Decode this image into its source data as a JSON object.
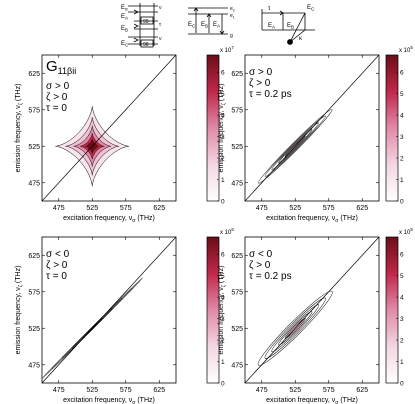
{
  "diagrams": {
    "ladder": {
      "energies": [
        "E",
        "E",
        "E",
        "E"
      ],
      "subscripts": [
        "α",
        "A",
        "B",
        "C"
      ],
      "side_labels": [
        "ν",
        "τ",
        "ν"
      ],
      "box_labels": [
        "99",
        "98"
      ]
    },
    "levels": {
      "energies": [
        "E",
        "E",
        "E"
      ],
      "subscripts": [
        "C",
        "B",
        "A"
      ],
      "side_labels": [
        "e",
        "e",
        "g"
      ],
      "side_subscripts": [
        "2",
        "1",
        ""
      ]
    },
    "kinetic": {
      "energies": [
        "E",
        "E",
        "E"
      ],
      "subscripts": [
        "A",
        "B",
        "C"
      ],
      "rate_labels": [
        "τ",
        "κ"
      ]
    }
  },
  "colors": {
    "contour": "#000000",
    "fill_dark": "#6b0d18",
    "fill_light": "#f4d8e4",
    "diagonal": "#000000"
  },
  "chart_data": [
    {
      "type": "heatmap",
      "panel_title": "G",
      "panel_title_suffix": "11βii",
      "params": [
        "σ > 0",
        "ζ > 0",
        "τ = 0"
      ],
      "xlabel": "excitation frequency, ν",
      "xlabel_sub": "σ",
      "xlabel_unit": "(THz)",
      "ylabel": "emission frequency, ν",
      "ylabel_sub": "ζ",
      "ylabel_unit": "(THz)",
      "xticks": [
        475,
        525,
        575,
        625
      ],
      "yticks": [
        475,
        525,
        575,
        625
      ],
      "xlim": [
        450,
        650
      ],
      "ylim": [
        450,
        650
      ],
      "colorbar_exponent": "x 10",
      "colorbar_power": "7",
      "colorbar_ticks": [
        0,
        1,
        2,
        3,
        4,
        5,
        6
      ],
      "colorbar_max": 6.8,
      "shape": "cross",
      "center": [
        525,
        525
      ],
      "extents": [
        55,
        40,
        28,
        18,
        10
      ]
    },
    {
      "type": "heatmap",
      "panel_title": "",
      "panel_title_suffix": "",
      "params": [
        "σ > 0",
        "ζ > 0",
        "τ = 0.2 ps"
      ],
      "xlabel": "excitation frequency, ν",
      "xlabel_sub": "σ",
      "xlabel_unit": "(THz)",
      "ylabel": "emission frequency, ν",
      "ylabel_sub": "ζ",
      "ylabel_unit": "(THz)",
      "xticks": [
        475,
        525,
        575,
        625
      ],
      "yticks": [
        475,
        525,
        575,
        625
      ],
      "xlim": [
        450,
        650
      ],
      "ylim": [
        450,
        650
      ],
      "colorbar_exponent": "x 10",
      "colorbar_power": "5",
      "colorbar_ticks": [
        0,
        1,
        2,
        3,
        4,
        5,
        6
      ],
      "colorbar_max": 6.8,
      "shape": "diagonal",
      "center": [
        525,
        525
      ],
      "extents": [
        55,
        45,
        35,
        25,
        15
      ],
      "widths": [
        5,
        4,
        3,
        2,
        1.2
      ]
    },
    {
      "type": "heatmap",
      "panel_title": "",
      "panel_title_suffix": "",
      "params": [
        "σ < 0",
        "ζ > 0",
        "τ = 0"
      ],
      "xlabel": "excitation frequency, ν",
      "xlabel_sub": "σ",
      "xlabel_unit": "(THz)",
      "ylabel": "emission frequency, ν",
      "ylabel_sub": "ζ",
      "ylabel_unit": "(THz)",
      "xticks": [
        475,
        525,
        575,
        625
      ],
      "yticks": [
        475,
        525,
        575,
        625
      ],
      "xlim": [
        450,
        650
      ],
      "ylim": [
        450,
        650
      ],
      "colorbar_exponent": "x 10",
      "colorbar_power": "6",
      "colorbar_ticks": [
        0,
        1,
        2,
        3,
        4,
        5,
        6
      ],
      "colorbar_max": 6.8,
      "shape": "diagonal",
      "center": [
        525,
        525
      ],
      "extents": [
        75,
        60,
        45,
        30,
        15
      ],
      "widths": [
        1.2,
        1.0,
        0.8,
        0.6,
        0.5
      ]
    },
    {
      "type": "heatmap",
      "panel_title": "",
      "panel_title_suffix": "",
      "params": [
        "σ < 0",
        "ζ > 0",
        "τ = 0.2 ps"
      ],
      "xlabel": "excitation frequency, ν",
      "xlabel_sub": "σ",
      "xlabel_unit": "(THz)",
      "ylabel": "emission frequency, ν",
      "ylabel_sub": "ζ",
      "ylabel_unit": "(THz)",
      "xticks": [
        475,
        525,
        575,
        625
      ],
      "yticks": [
        475,
        525,
        575,
        625
      ],
      "xlim": [
        450,
        650
      ],
      "ylim": [
        450,
        650
      ],
      "colorbar_exponent": "x 10",
      "colorbar_power": "5",
      "colorbar_ticks": [
        0,
        1,
        2,
        3,
        4,
        5,
        6
      ],
      "colorbar_max": 6.8,
      "shape": "diagonal",
      "center": [
        525,
        525
      ],
      "extents": [
        55,
        45,
        35,
        25,
        15
      ],
      "widths": [
        9,
        7,
        5,
        3.5,
        2
      ]
    }
  ]
}
